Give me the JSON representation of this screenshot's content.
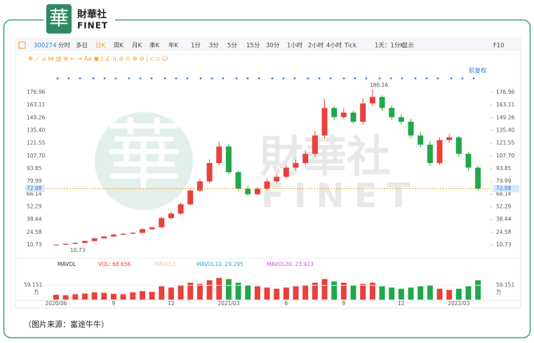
{
  "logo": {
    "mark": "華",
    "name": "財華社",
    "sub": "FINET"
  },
  "toolbar": {
    "code": "300274",
    "periods": [
      "分时",
      "多日",
      "日K",
      "周K",
      "月K",
      "季K",
      "年K",
      "1分",
      "3分",
      "5分",
      "15分",
      "30分",
      "1小时",
      "2小时",
      "4小时",
      "Tick",
      "1天：1分K",
      "显示"
    ],
    "f10": "F10",
    "adjust": "前复权"
  },
  "watermark": {
    "name": "財華社",
    "sub": "FINET"
  },
  "caption": "（图片来源：富途牛牛）",
  "chart_data": {
    "type": "candlestick",
    "x": [
      0,
      0.5,
      1,
      1.5,
      2,
      2.5,
      3,
      3.5,
      4,
      4.5,
      5,
      5.5,
      6,
      6.5,
      7,
      7.5,
      8,
      8.5,
      9,
      9.5,
      10,
      10.5,
      11,
      11.5,
      12,
      12.5,
      13,
      13.5,
      14,
      14.5,
      15,
      15.5,
      16,
      16.5,
      17,
      17.5,
      18,
      18.5,
      19,
      19.5,
      20,
      20.5,
      21,
      21.5,
      22
    ],
    "open": [
      10.8,
      11,
      12,
      13,
      15,
      18,
      20,
      22,
      23,
      24,
      28,
      30,
      40,
      45,
      55,
      70,
      80,
      100,
      118,
      90,
      72,
      66,
      72,
      80,
      85,
      95,
      100,
      110,
      130,
      160,
      150,
      155,
      145,
      165,
      172,
      160,
      150,
      145,
      130,
      120,
      100,
      125,
      128,
      110,
      95
    ],
    "high": [
      11.5,
      12.5,
      13.6,
      15.6,
      18.8,
      20.8,
      22.8,
      23.8,
      24.8,
      29,
      31,
      41.5,
      47,
      57,
      72,
      83,
      104,
      123,
      120,
      92,
      75,
      74,
      83,
      88,
      98,
      104,
      114,
      135,
      170,
      162,
      160,
      157,
      170,
      180.16,
      174,
      163,
      153,
      148,
      134,
      124,
      128,
      132,
      130,
      112,
      97
    ],
    "low": [
      10.73,
      10.8,
      11.7,
      12.6,
      14.6,
      17.5,
      19.6,
      21.5,
      22.5,
      23.4,
      27.3,
      29,
      39,
      44,
      54,
      68,
      78,
      98,
      88,
      70,
      64,
      65,
      70,
      78,
      83,
      92,
      98,
      107,
      127,
      147,
      148,
      143,
      142,
      162,
      157,
      147,
      142,
      127,
      117,
      97,
      98,
      122,
      107,
      92,
      70
    ],
    "close": [
      11,
      12,
      13,
      15,
      18,
      20,
      22,
      23,
      24,
      28,
      30,
      40,
      45,
      55,
      70,
      80,
      100,
      118,
      90,
      72,
      66,
      72,
      80,
      85,
      95,
      100,
      110,
      130,
      160,
      150,
      155,
      145,
      165,
      172,
      160,
      150,
      145,
      130,
      120,
      100,
      125,
      128,
      110,
      95,
      72
    ],
    "up_color": "#e8413c",
    "down_color": "#20a84a",
    "xlim": [
      -0.62,
      22.25
    ],
    "xticks": [
      {
        "value": 0,
        "label": "2020/06"
      },
      {
        "value": 3,
        "label": "9"
      },
      {
        "value": 6,
        "label": "12"
      },
      {
        "value": 9,
        "label": "2021/03"
      },
      {
        "value": 12,
        "label": "6"
      },
      {
        "value": 15,
        "label": "9"
      },
      {
        "value": 18,
        "label": "12"
      },
      {
        "value": 21,
        "label": "2022/03"
      }
    ],
    "ylim": [
      4.63,
      187.63
    ],
    "yticks": [
      10.73,
      24.58,
      38.44,
      52.29,
      66.14,
      79.99,
      93.85,
      {
        "value": 107.7,
        "label": "107.70"
      },
      121.55,
      {
        "value": 135.4,
        "label": "135.40"
      },
      149.26,
      163.11,
      176.96
    ],
    "last_price": 72.08,
    "max_label": 180.16,
    "min_label": 10.73,
    "volume": {
      "indicator": "MAVOL",
      "legend": [
        {
          "text": "VOL: 68.656",
          "color": "#e8413c"
        },
        {
          "text": "MAVOL5",
          "color": "#f2c4a4"
        },
        {
          "text": "MAVOL10: 29.295",
          "color": "#3aa0dc"
        },
        {
          "text": "MAVOL20: 23.423",
          "color": "#c25bd3"
        }
      ],
      "values": [
        20,
        18,
        22,
        25,
        30,
        28,
        24,
        22,
        30,
        35,
        32,
        55,
        50,
        60,
        70,
        65,
        80,
        90,
        85,
        70,
        60,
        55,
        50,
        45,
        50,
        55,
        60,
        70,
        85,
        75,
        70,
        60,
        65,
        70,
        55,
        50,
        45,
        50,
        55,
        60,
        45,
        40,
        45,
        55,
        80
      ],
      "ylim": [
        0,
        110
      ],
      "yticks": [
        59.151
      ],
      "unit": "万"
    }
  }
}
